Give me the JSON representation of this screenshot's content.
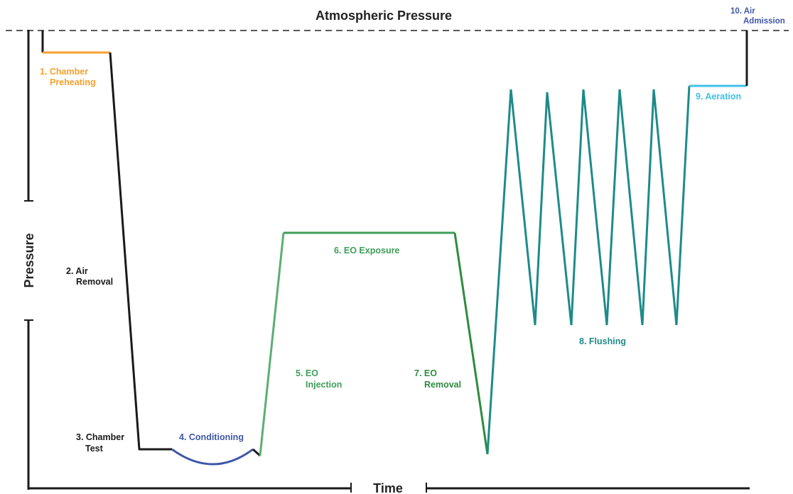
{
  "header": {
    "atmospheric_label": "Atmospheric Pressure"
  },
  "axes": {
    "y_label": "Pressure",
    "x_label": "Time"
  },
  "phases": {
    "p1_line1": "1. Chamber",
    "p1_line2": "Preheating",
    "p2_line1": "2. Air",
    "p2_line2": "Removal",
    "p3_line1": "3. Chamber",
    "p3_line2": "Test",
    "p4": "4. Conditioning",
    "p5_line1": "5. EO",
    "p5_line2": "Injection",
    "p6": "6. EO Exposure",
    "p7_line1": "7. EO",
    "p7_line2": "Removal",
    "p8": "8. Flushing",
    "p9": "9. Aeration",
    "p10_line1": "10. Air",
    "p10_line2": "Admission"
  },
  "colors": {
    "preheating": "#f5a030",
    "default": "#1a1a1a",
    "conditioning": "#3f57a6",
    "injection": "#5bae73",
    "exposure": "#3f9e5a",
    "removal": "#2e8b3f",
    "flushing": "#1f8a8a",
    "aeration": "#3fc1e6",
    "admission": "#3f57a6"
  }
}
